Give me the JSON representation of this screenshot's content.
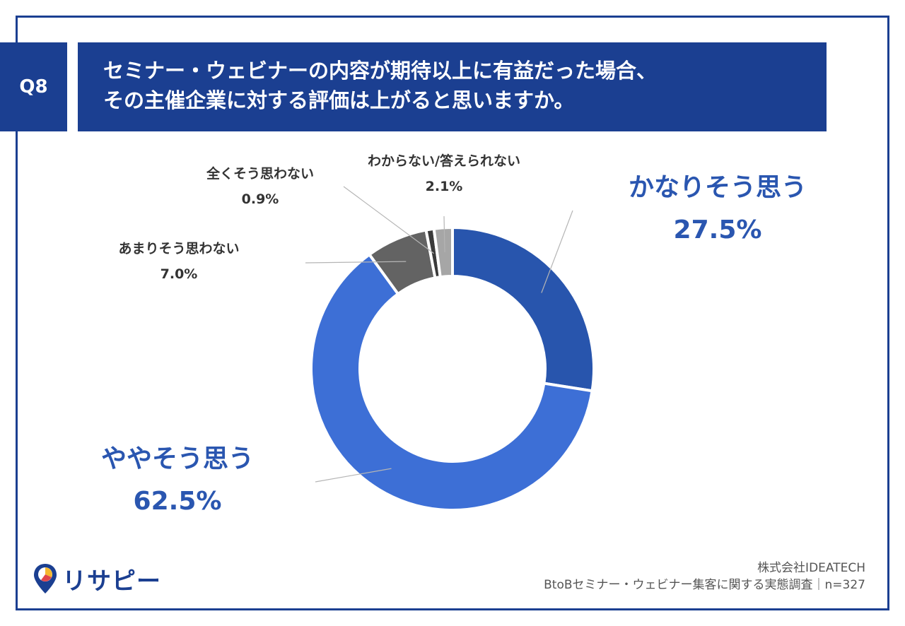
{
  "header": {
    "q_label": "Q8",
    "title_line1": "セミナー・ウェビナーの内容が期待以上に有益だった場合、",
    "title_line2": "その主催企業に対する評価は上がると思いますか。"
  },
  "colors": {
    "brand": "#1b3f91",
    "kanari": "#2855ad",
    "yaya": "#3d6fd6",
    "amari": "#636363",
    "mattaku": "#3a3a3a",
    "wakaranai": "#a6a6a6",
    "leader": "#b5b5b5"
  },
  "chart_data": {
    "type": "pie",
    "donut": true,
    "title": "セミナー・ウェビナーの内容が期待以上に有益だった場合、その主催企業に対する評価は上がると思いますか。",
    "slices": [
      {
        "label": "かなりそう思う",
        "value": 27.5,
        "display": "27.5%",
        "color": "#2855ad"
      },
      {
        "label": "ややそう思う",
        "value": 62.5,
        "display": "62.5%",
        "color": "#3d6fd6"
      },
      {
        "label": "あまりそう思わない",
        "value": 7.0,
        "display": "7.0%",
        "color": "#636363"
      },
      {
        "label": "全くそう思わない",
        "value": 0.9,
        "display": "0.9%",
        "color": "#3a3a3a"
      },
      {
        "label": "わからない/答えられない",
        "value": 2.1,
        "display": "2.1%",
        "color": "#a6a6a6"
      }
    ]
  },
  "footer": {
    "company": "株式会社IDEATECH",
    "survey": "BtoBセミナー・ウェビナー集客に関する実態調査｜n=327"
  },
  "logo": {
    "text": "リサピー"
  }
}
